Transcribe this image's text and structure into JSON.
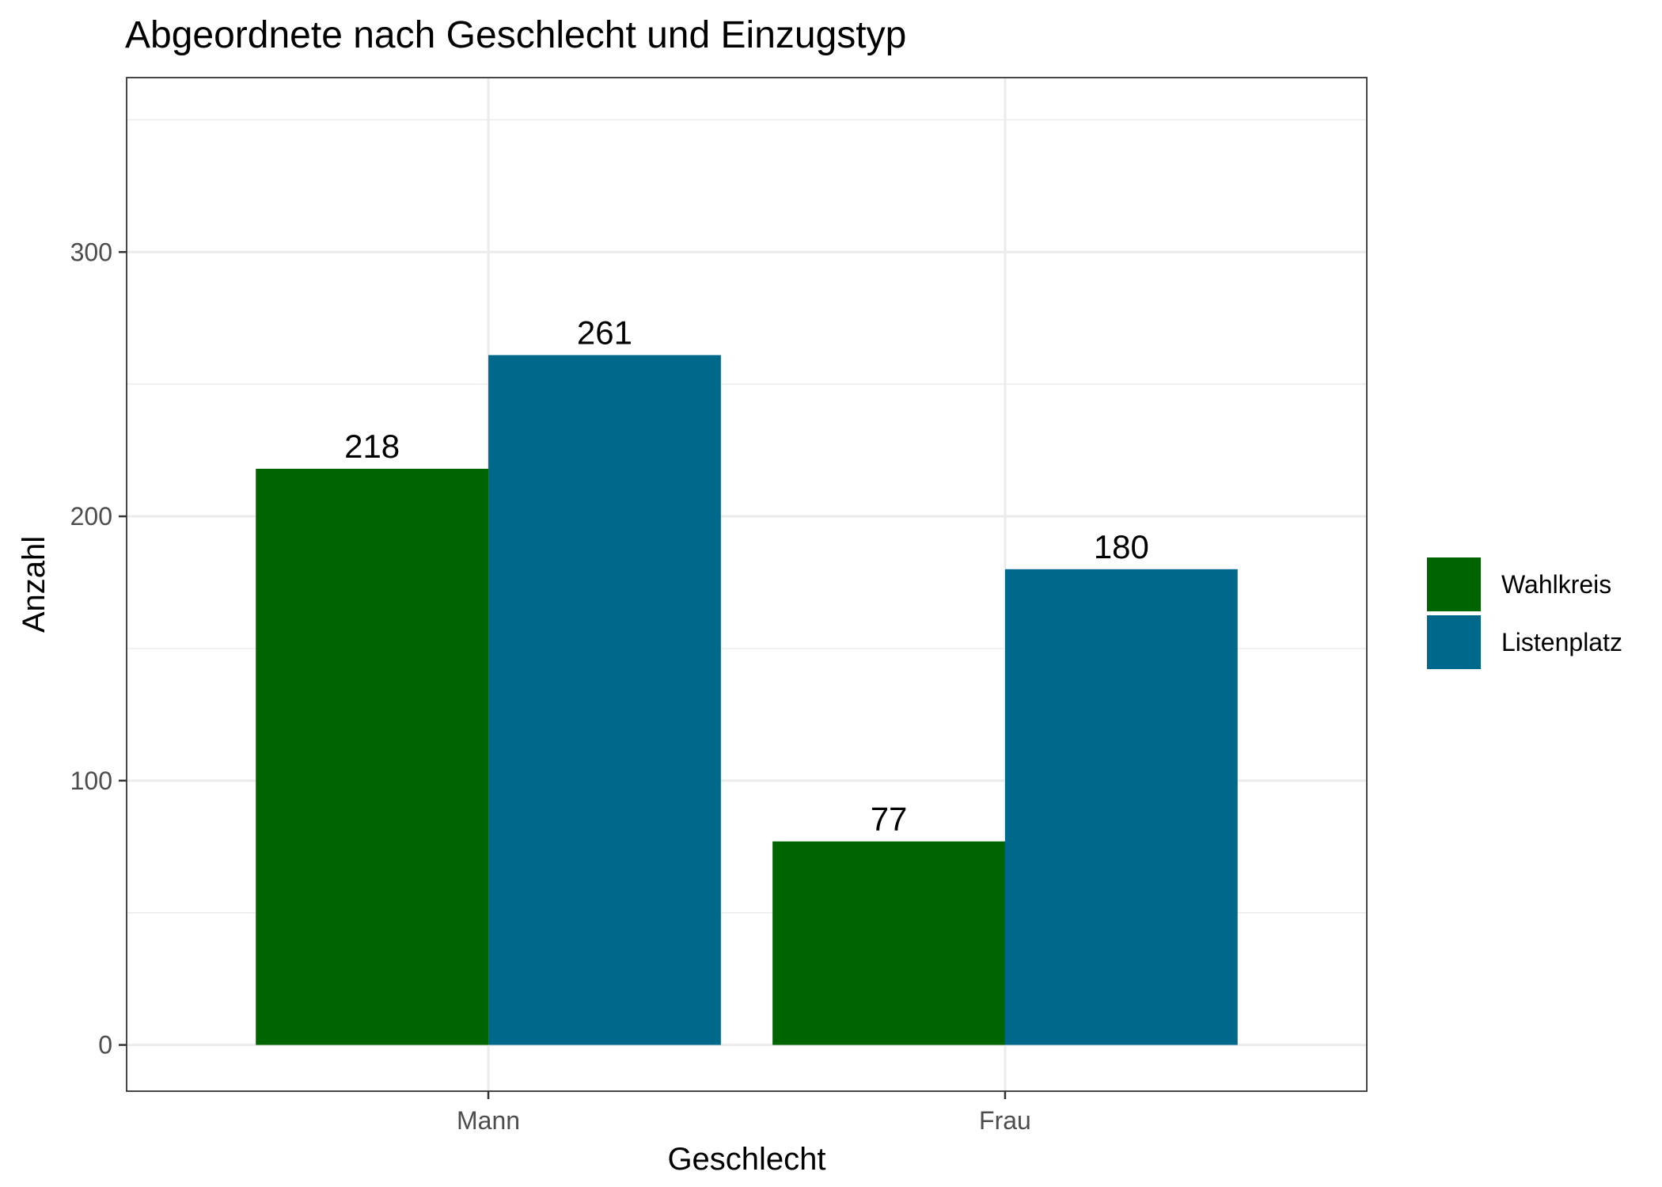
{
  "chart_data": {
    "type": "bar",
    "title": "Abgeordnete nach Geschlecht und Einzugstyp",
    "xlabel": "Geschlecht",
    "ylabel": "Anzahl",
    "categories": [
      "Mann",
      "Frau"
    ],
    "series": [
      {
        "name": "Wahlkreis",
        "values": [
          218,
          77
        ],
        "color": "#006400"
      },
      {
        "name": "Listenplatz",
        "values": [
          261,
          180
        ],
        "color": "#00688B"
      }
    ],
    "ylim": [
      -17.5,
      366
    ],
    "yticks": [
      0,
      100,
      200,
      300
    ],
    "grid": true,
    "legend_position": "right"
  }
}
